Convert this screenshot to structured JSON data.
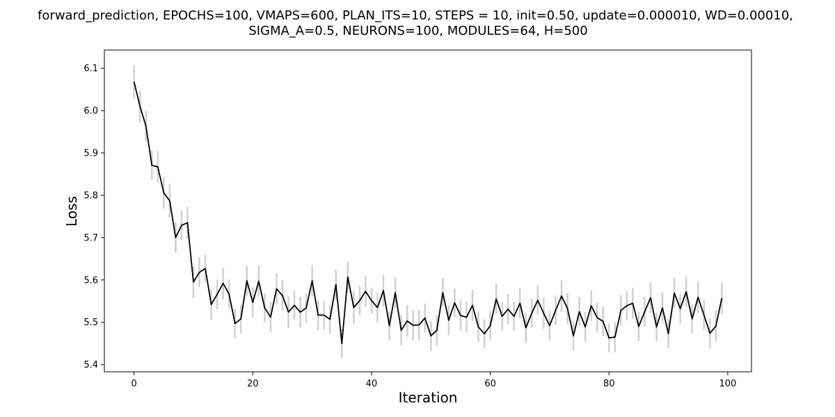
{
  "chart_data": {
    "type": "line",
    "title_line1": "forward_prediction, EPOCHS=100, VMAPS=600, PLAN_ITS=10, STEPS = 10, init=0.50, update=0.000010, WD=0.00010,",
    "title_line2": "SIGMA_A=0.5, NEURONS=100, MODULES=64, H=500",
    "xlabel": "Iteration",
    "ylabel": "Loss",
    "xlim": [
      -5,
      104
    ],
    "ylim": [
      5.383,
      6.143
    ],
    "xticks": [
      0,
      20,
      40,
      60,
      80,
      100
    ],
    "yticks": [
      5.4,
      5.5,
      5.6,
      5.7,
      5.8,
      5.9,
      6.0,
      6.1
    ],
    "grid": false,
    "line_color": "#000000",
    "errorbar_color": "#d0d0d0",
    "series": [
      {
        "values": [
          6.068,
          6.01,
          5.963,
          5.871,
          5.867,
          5.806,
          5.787,
          5.7,
          5.729,
          5.735,
          5.595,
          5.618,
          5.627,
          5.542,
          5.566,
          5.592,
          5.567,
          5.497,
          5.508,
          5.598,
          5.547,
          5.597,
          5.534,
          5.512,
          5.579,
          5.563,
          5.524,
          5.54,
          5.524,
          5.534,
          5.598,
          5.517,
          5.517,
          5.507,
          5.589,
          5.45,
          5.607,
          5.535,
          5.551,
          5.573,
          5.551,
          5.535,
          5.575,
          5.492,
          5.57,
          5.481,
          5.503,
          5.493,
          5.494,
          5.51,
          5.468,
          5.481,
          5.57,
          5.505,
          5.546,
          5.516,
          5.512,
          5.54,
          5.489,
          5.473,
          5.492,
          5.555,
          5.514,
          5.531,
          5.514,
          5.545,
          5.487,
          5.522,
          5.552,
          5.521,
          5.492,
          5.528,
          5.562,
          5.533,
          5.468,
          5.525,
          5.489,
          5.539,
          5.511,
          5.502,
          5.463,
          5.465,
          5.528,
          5.539,
          5.545,
          5.49,
          5.525,
          5.558,
          5.489,
          5.534,
          5.473,
          5.569,
          5.532,
          5.572,
          5.508,
          5.559,
          5.517,
          5.474,
          5.491,
          5.557
        ],
        "errors": [
          0.04,
          0.038,
          0.037,
          0.035,
          0.037,
          0.038,
          0.04,
          0.036,
          0.035,
          0.038,
          0.037,
          0.035,
          0.033,
          0.036,
          0.035,
          0.037,
          0.034,
          0.035,
          0.034,
          0.035,
          0.036,
          0.037,
          0.034,
          0.035,
          0.036,
          0.036,
          0.037,
          0.035,
          0.036,
          0.034,
          0.037,
          0.035,
          0.034,
          0.035,
          0.036,
          0.035,
          0.037,
          0.038,
          0.035,
          0.036,
          0.03,
          0.035,
          0.038,
          0.034,
          0.036,
          0.035,
          0.037,
          0.036,
          0.035,
          0.034,
          0.035,
          0.036,
          0.034,
          0.036,
          0.034,
          0.035,
          0.036,
          0.037,
          0.036,
          0.034,
          0.035,
          0.035,
          0.034,
          0.036,
          0.035,
          0.035,
          0.036,
          0.034,
          0.035,
          0.036,
          0.035,
          0.035,
          0.037,
          0.036,
          0.034,
          0.035,
          0.035,
          0.036,
          0.035,
          0.035,
          0.034,
          0.035,
          0.036,
          0.035,
          0.036,
          0.034,
          0.035,
          0.037,
          0.034,
          0.036,
          0.035,
          0.036,
          0.035,
          0.036,
          0.034,
          0.038,
          0.035,
          0.036,
          0.036,
          0.037
        ]
      }
    ]
  }
}
